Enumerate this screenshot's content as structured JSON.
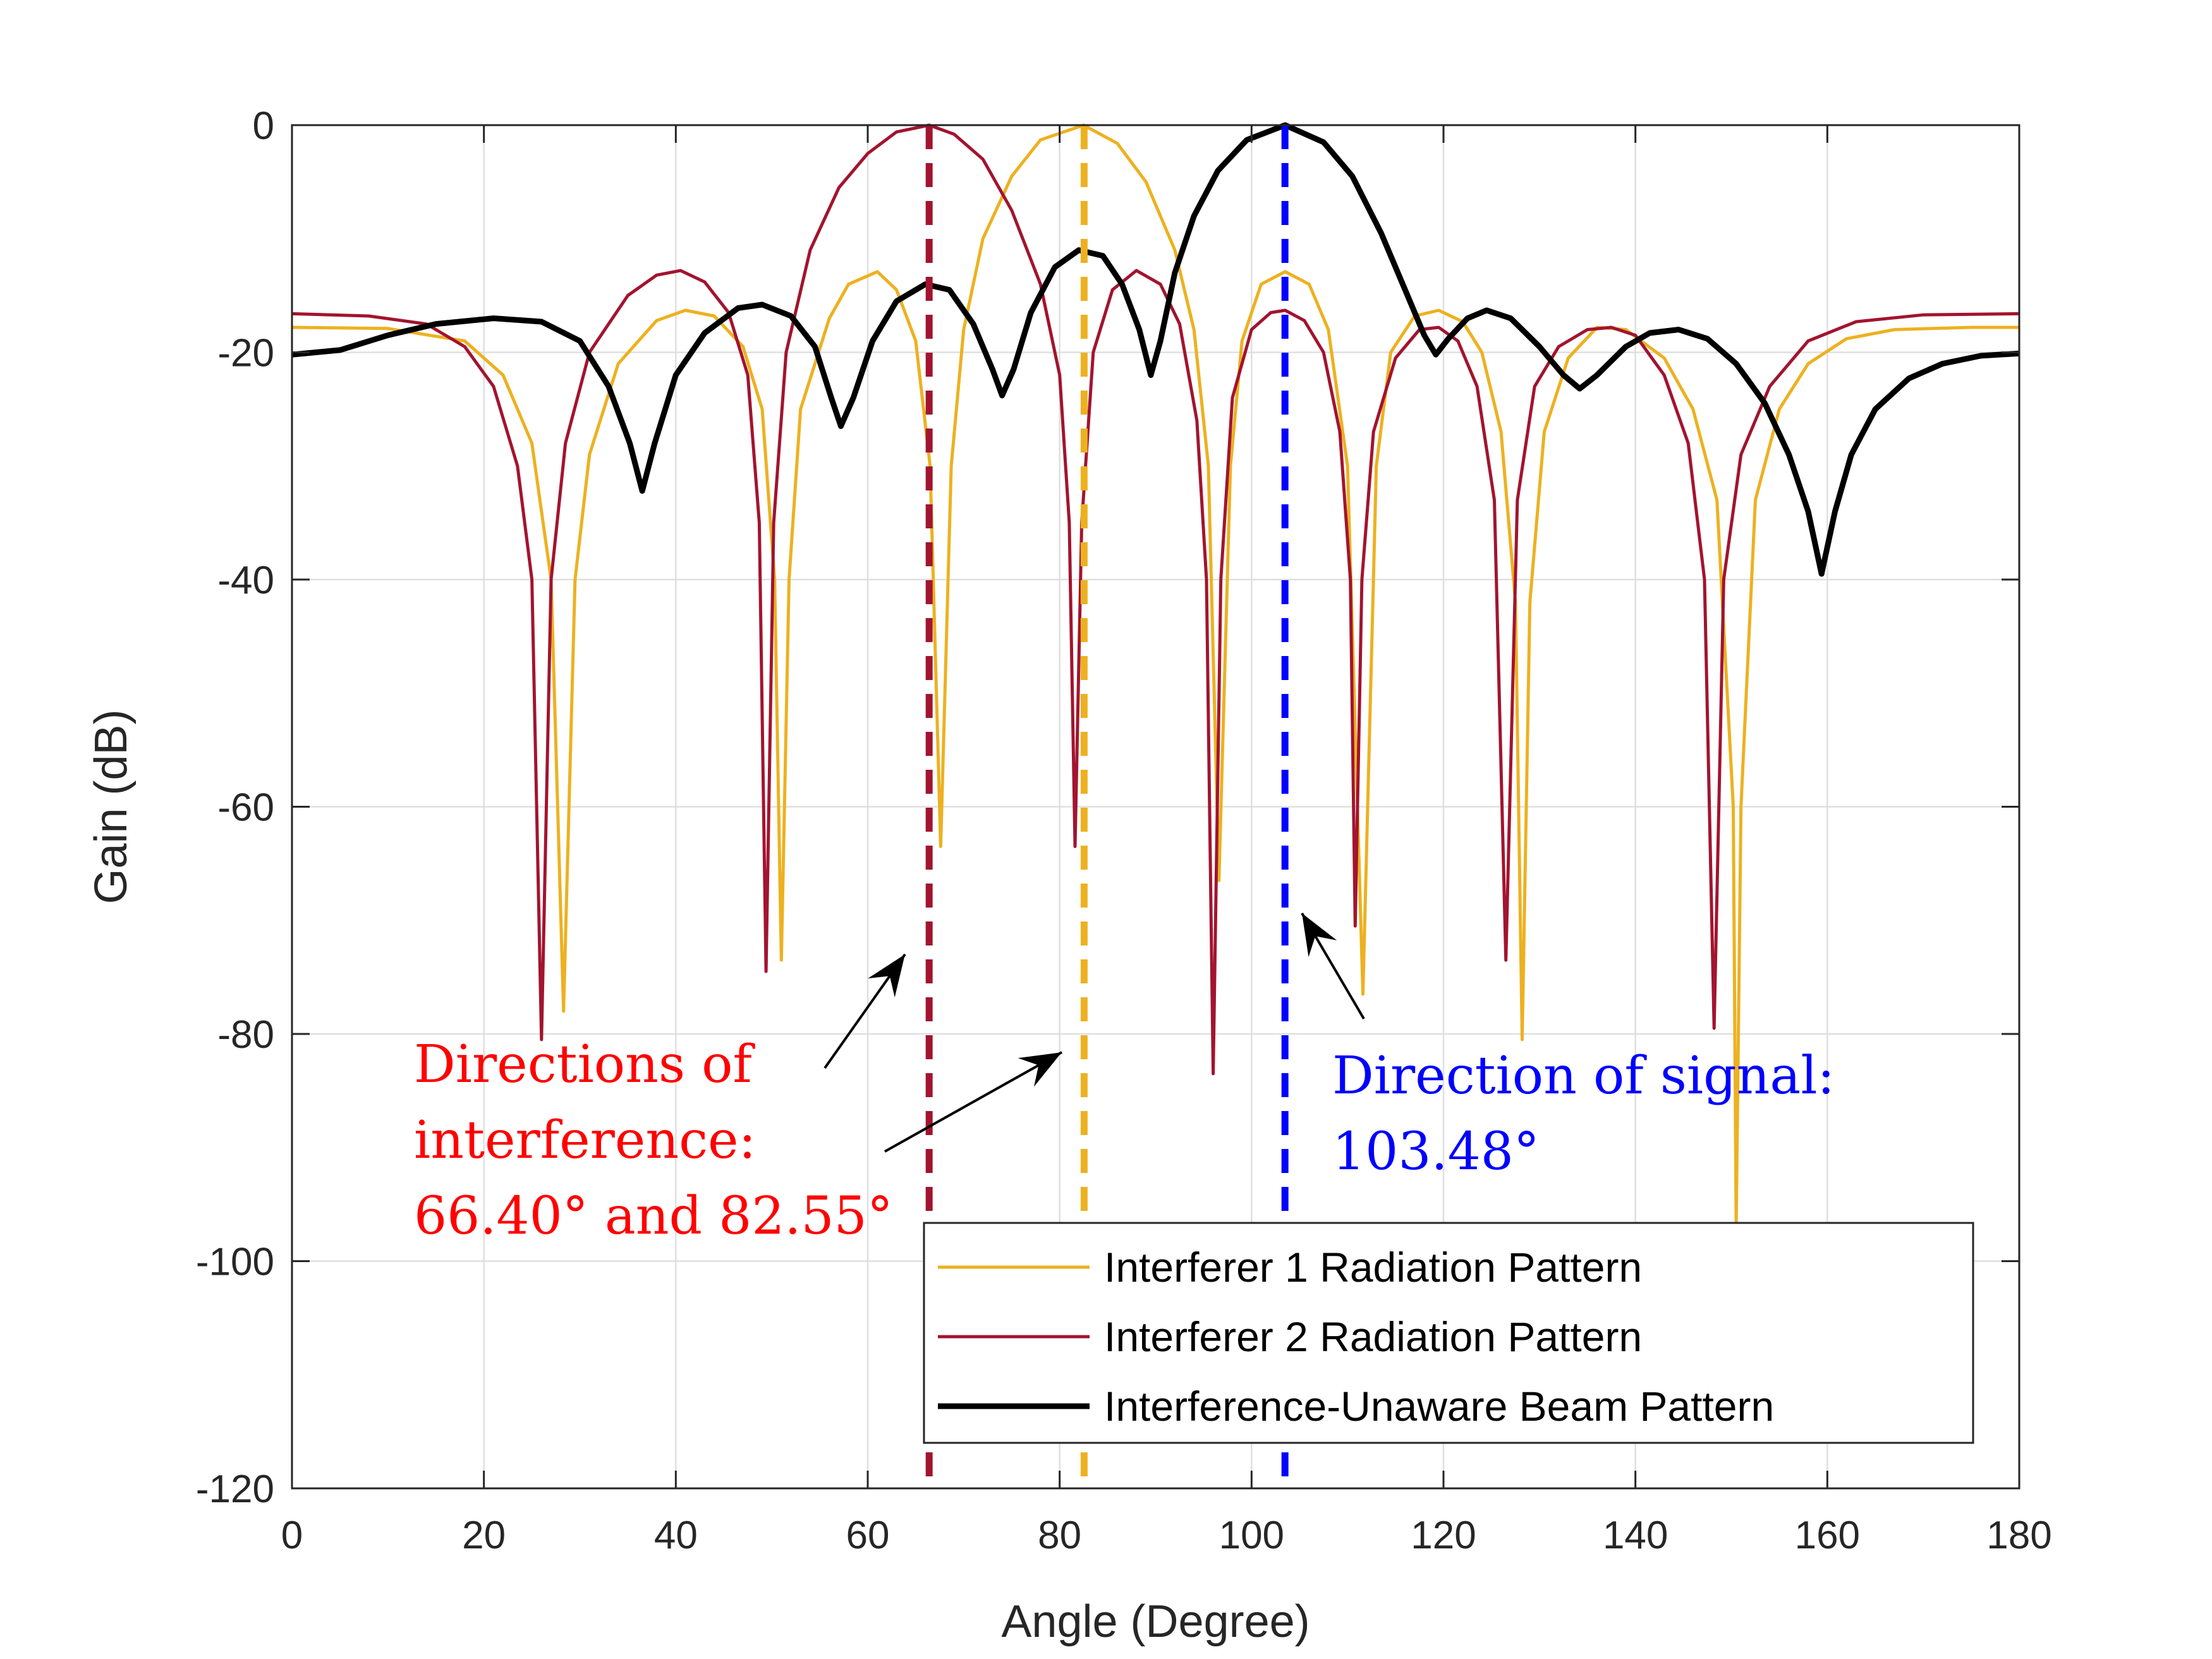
{
  "chart_data": {
    "type": "line",
    "xlabel": "Angle (Degree)",
    "ylabel": "Gain (dB)",
    "xlim": [
      0,
      180
    ],
    "ylim": [
      -120,
      0
    ],
    "xticks": [
      "0",
      "20",
      "40",
      "60",
      "80",
      "100",
      "120",
      "140",
      "160",
      "180"
    ],
    "yticks": [
      "0",
      "-20",
      "-40",
      "-60",
      "-80",
      "-100",
      "-120"
    ],
    "grid": true,
    "legend_position": "bottom-right",
    "colors": {
      "interferer1": "#EDB120",
      "interferer2": "#A2142F",
      "unaware": "#000000",
      "signal_line": "#0000FF",
      "interference_text": "#FF0000",
      "signal_text": "#0000FF"
    },
    "series": [
      {
        "name": "Interferer 1 Radiation Pattern",
        "color": "#EDB120",
        "points": [
          [
            0,
            -17.8
          ],
          [
            10,
            -17.9
          ],
          [
            18,
            -19
          ],
          [
            22,
            -22
          ],
          [
            25,
            -28
          ],
          [
            27,
            -40
          ],
          [
            28.3,
            -78
          ],
          [
            29.5,
            -40
          ],
          [
            31,
            -29
          ],
          [
            34,
            -21
          ],
          [
            38,
            -17.2
          ],
          [
            41,
            -16.3
          ],
          [
            44,
            -16.8
          ],
          [
            47,
            -19.5
          ],
          [
            49,
            -25
          ],
          [
            50.3,
            -40
          ],
          [
            51,
            -73.5
          ],
          [
            51.8,
            -40
          ],
          [
            53,
            -25
          ],
          [
            56,
            -17
          ],
          [
            58,
            -14
          ],
          [
            61,
            -12.9
          ],
          [
            63,
            -14.5
          ],
          [
            65,
            -19
          ],
          [
            66.5,
            -30
          ],
          [
            67.6,
            -63.5
          ],
          [
            68.7,
            -30
          ],
          [
            70,
            -18
          ],
          [
            72,
            -10
          ],
          [
            75,
            -4.5
          ],
          [
            78,
            -1.3
          ],
          [
            82.5,
            0
          ],
          [
            86,
            -1.6
          ],
          [
            89,
            -5
          ],
          [
            92,
            -11
          ],
          [
            94,
            -18
          ],
          [
            95.5,
            -30
          ],
          [
            96.6,
            -66.5
          ],
          [
            97.8,
            -30
          ],
          [
            99,
            -19
          ],
          [
            101,
            -14
          ],
          [
            103.5,
            -12.9
          ],
          [
            106,
            -14
          ],
          [
            108,
            -18
          ],
          [
            110,
            -30
          ],
          [
            111.6,
            -76.5
          ],
          [
            113,
            -30
          ],
          [
            114.5,
            -20
          ],
          [
            117,
            -16.8
          ],
          [
            119.5,
            -16.3
          ],
          [
            122,
            -17.3
          ],
          [
            124,
            -20
          ],
          [
            126,
            -27
          ],
          [
            127.5,
            -42
          ],
          [
            128.2,
            -80.5
          ],
          [
            129,
            -42
          ],
          [
            130.5,
            -27
          ],
          [
            133,
            -20.5
          ],
          [
            136,
            -17.8
          ],
          [
            139,
            -18
          ],
          [
            143,
            -20.5
          ],
          [
            146,
            -25
          ],
          [
            148.5,
            -33
          ],
          [
            150.2,
            -60
          ],
          [
            150.5,
            -97
          ],
          [
            151,
            -60
          ],
          [
            152.5,
            -33
          ],
          [
            155,
            -25
          ],
          [
            158,
            -21
          ],
          [
            162,
            -18.8
          ],
          [
            167,
            -18
          ],
          [
            175,
            -17.8
          ],
          [
            180,
            -17.8
          ]
        ]
      },
      {
        "name": "Interferer 2 Radiation Pattern",
        "color": "#A2142F",
        "points": [
          [
            0,
            -16.6
          ],
          [
            8,
            -16.8
          ],
          [
            14,
            -17.5
          ],
          [
            18,
            -19.5
          ],
          [
            21,
            -23
          ],
          [
            23.5,
            -30
          ],
          [
            25,
            -40
          ],
          [
            26,
            -80.5
          ],
          [
            27,
            -40
          ],
          [
            28.5,
            -28
          ],
          [
            31,
            -20
          ],
          [
            35,
            -15
          ],
          [
            38,
            -13.2
          ],
          [
            40.5,
            -12.8
          ],
          [
            43,
            -13.8
          ],
          [
            45.5,
            -16.5
          ],
          [
            47.5,
            -22
          ],
          [
            48.7,
            -35
          ],
          [
            49.4,
            -74.5
          ],
          [
            50.2,
            -35
          ],
          [
            51.5,
            -20
          ],
          [
            54,
            -11
          ],
          [
            57,
            -5.5
          ],
          [
            60,
            -2.5
          ],
          [
            63,
            -0.6
          ],
          [
            66.4,
            0
          ],
          [
            69,
            -0.8
          ],
          [
            72,
            -3
          ],
          [
            75,
            -7.5
          ],
          [
            78,
            -14
          ],
          [
            80,
            -22
          ],
          [
            81,
            -35
          ],
          [
            81.6,
            -63.5
          ],
          [
            82.3,
            -35
          ],
          [
            83.5,
            -20
          ],
          [
            85.5,
            -14.5
          ],
          [
            88,
            -12.8
          ],
          [
            90.5,
            -14
          ],
          [
            92.5,
            -17.5
          ],
          [
            94.3,
            -26
          ],
          [
            95.3,
            -40
          ],
          [
            96,
            -83.5
          ],
          [
            96.8,
            -40
          ],
          [
            98,
            -24
          ],
          [
            100,
            -18
          ],
          [
            102,
            -16.5
          ],
          [
            103.5,
            -16.3
          ],
          [
            105.5,
            -17.2
          ],
          [
            107.5,
            -20
          ],
          [
            109.2,
            -27
          ],
          [
            110.3,
            -40
          ],
          [
            110.8,
            -70.5
          ],
          [
            111.5,
            -40
          ],
          [
            112.7,
            -27
          ],
          [
            115,
            -20.5
          ],
          [
            117.5,
            -18
          ],
          [
            119.5,
            -17.8
          ],
          [
            121.5,
            -19
          ],
          [
            123.5,
            -23
          ],
          [
            125.3,
            -33
          ],
          [
            126.5,
            -73.5
          ],
          [
            127.7,
            -33
          ],
          [
            129.5,
            -23
          ],
          [
            132,
            -19.5
          ],
          [
            135,
            -18
          ],
          [
            137.5,
            -17.8
          ],
          [
            140,
            -18.5
          ],
          [
            143,
            -22
          ],
          [
            145.5,
            -28
          ],
          [
            147.2,
            -40
          ],
          [
            148.2,
            -79.5
          ],
          [
            149.2,
            -40
          ],
          [
            151,
            -29
          ],
          [
            154,
            -23
          ],
          [
            158,
            -19
          ],
          [
            163,
            -17.3
          ],
          [
            170,
            -16.7
          ],
          [
            180,
            -16.6
          ]
        ]
      },
      {
        "name": "Interference-Unaware Beam Pattern",
        "color": "#000000",
        "points": [
          [
            0,
            -20.2
          ],
          [
            5,
            -19.8
          ],
          [
            10,
            -18.5
          ],
          [
            15,
            -17.5
          ],
          [
            21,
            -17
          ],
          [
            26,
            -17.3
          ],
          [
            30,
            -19
          ],
          [
            33,
            -23
          ],
          [
            35.2,
            -28
          ],
          [
            36.5,
            -32.2
          ],
          [
            37.8,
            -28
          ],
          [
            40,
            -22
          ],
          [
            43,
            -18.3
          ],
          [
            46.5,
            -16.1
          ],
          [
            49,
            -15.8
          ],
          [
            52,
            -16.8
          ],
          [
            54.5,
            -19.5
          ],
          [
            56.2,
            -24
          ],
          [
            57.2,
            -26.5
          ],
          [
            58.5,
            -24
          ],
          [
            60.5,
            -19
          ],
          [
            63,
            -15.5
          ],
          [
            66,
            -14
          ],
          [
            68.5,
            -14.5
          ],
          [
            71,
            -17.5
          ],
          [
            73,
            -21.5
          ],
          [
            74,
            -23.8
          ],
          [
            75.2,
            -21.5
          ],
          [
            77,
            -16.5
          ],
          [
            79.5,
            -12.5
          ],
          [
            82,
            -11
          ],
          [
            84.5,
            -11.5
          ],
          [
            86.5,
            -14
          ],
          [
            88.3,
            -18
          ],
          [
            89.5,
            -22
          ],
          [
            90.5,
            -19
          ],
          [
            92,
            -13
          ],
          [
            94,
            -8
          ],
          [
            96.5,
            -4
          ],
          [
            99.5,
            -1.3
          ],
          [
            103.5,
            0
          ],
          [
            107.5,
            -1.5
          ],
          [
            110.5,
            -4.5
          ],
          [
            113.5,
            -9.5
          ],
          [
            116,
            -14.5
          ],
          [
            118,
            -18.5
          ],
          [
            119.2,
            -20.2
          ],
          [
            120.5,
            -18.8
          ],
          [
            122.5,
            -17
          ],
          [
            124.5,
            -16.3
          ],
          [
            127,
            -17
          ],
          [
            130,
            -19.5
          ],
          [
            132.5,
            -22
          ],
          [
            134.2,
            -23.2
          ],
          [
            136,
            -22
          ],
          [
            139,
            -19.5
          ],
          [
            141.5,
            -18.3
          ],
          [
            144.5,
            -18
          ],
          [
            147.5,
            -18.8
          ],
          [
            150.5,
            -21
          ],
          [
            153.5,
            -24.5
          ],
          [
            156,
            -29
          ],
          [
            158,
            -34
          ],
          [
            159.4,
            -39.5
          ],
          [
            160.8,
            -34
          ],
          [
            162.5,
            -29
          ],
          [
            165,
            -25
          ],
          [
            168.5,
            -22.3
          ],
          [
            172,
            -21
          ],
          [
            176,
            -20.3
          ],
          [
            180,
            -20.1
          ]
        ]
      }
    ],
    "markers": [
      {
        "x": 66.4,
        "color": "#A2142F"
      },
      {
        "x": 82.55,
        "color": "#EDB120"
      },
      {
        "x": 103.48,
        "color": "#0000FF"
      }
    ],
    "annotations": {
      "interference_lines": [
        "Directions of",
        "interference:",
        "66.40° and 82.55°"
      ],
      "signal_lines": [
        "Direction of signal:",
        "103.48°"
      ]
    }
  }
}
